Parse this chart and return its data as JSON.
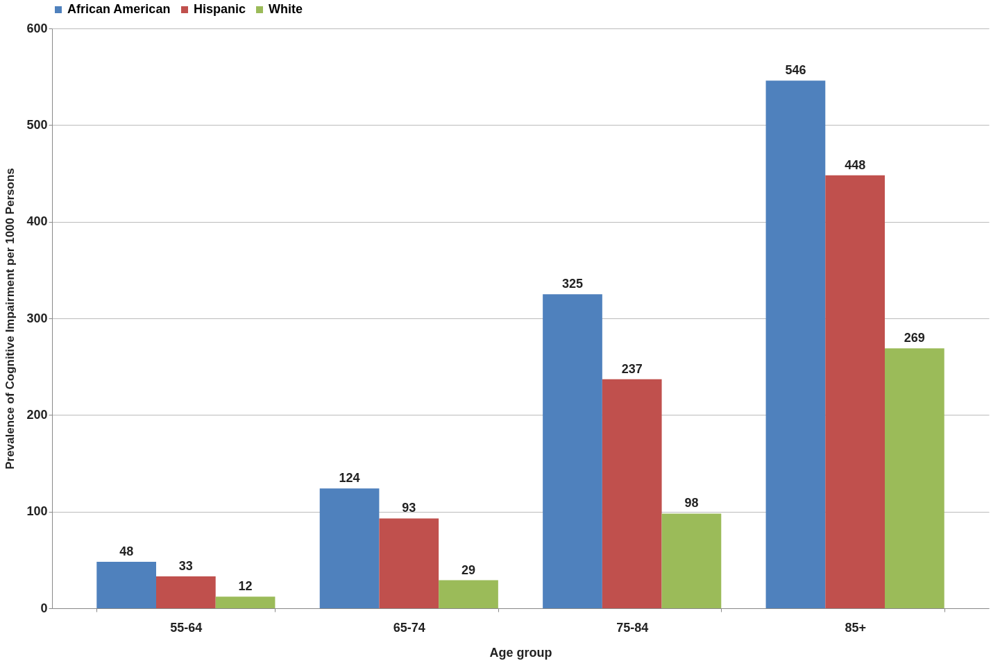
{
  "chart_data": {
    "type": "bar",
    "xlabel": "Age group",
    "ylabel": "Prevalence of Cognitive Impairment per 1000 Persons",
    "categories": [
      "55-64",
      "65-74",
      "75-84",
      "85+"
    ],
    "series": [
      {
        "name": "African American",
        "color": "#4f81bd",
        "values": [
          48,
          124,
          325,
          546
        ]
      },
      {
        "name": "Hispanic",
        "color": "#c0504d",
        "values": [
          33,
          93,
          237,
          448
        ]
      },
      {
        "name": "White",
        "color": "#9bbb59",
        "values": [
          12,
          29,
          98,
          269
        ]
      }
    ],
    "ylim": [
      0,
      600
    ],
    "yticks": [
      0,
      100,
      200,
      300,
      400,
      500,
      600
    ],
    "grid": "y",
    "legend": "top",
    "data_labels": true
  }
}
